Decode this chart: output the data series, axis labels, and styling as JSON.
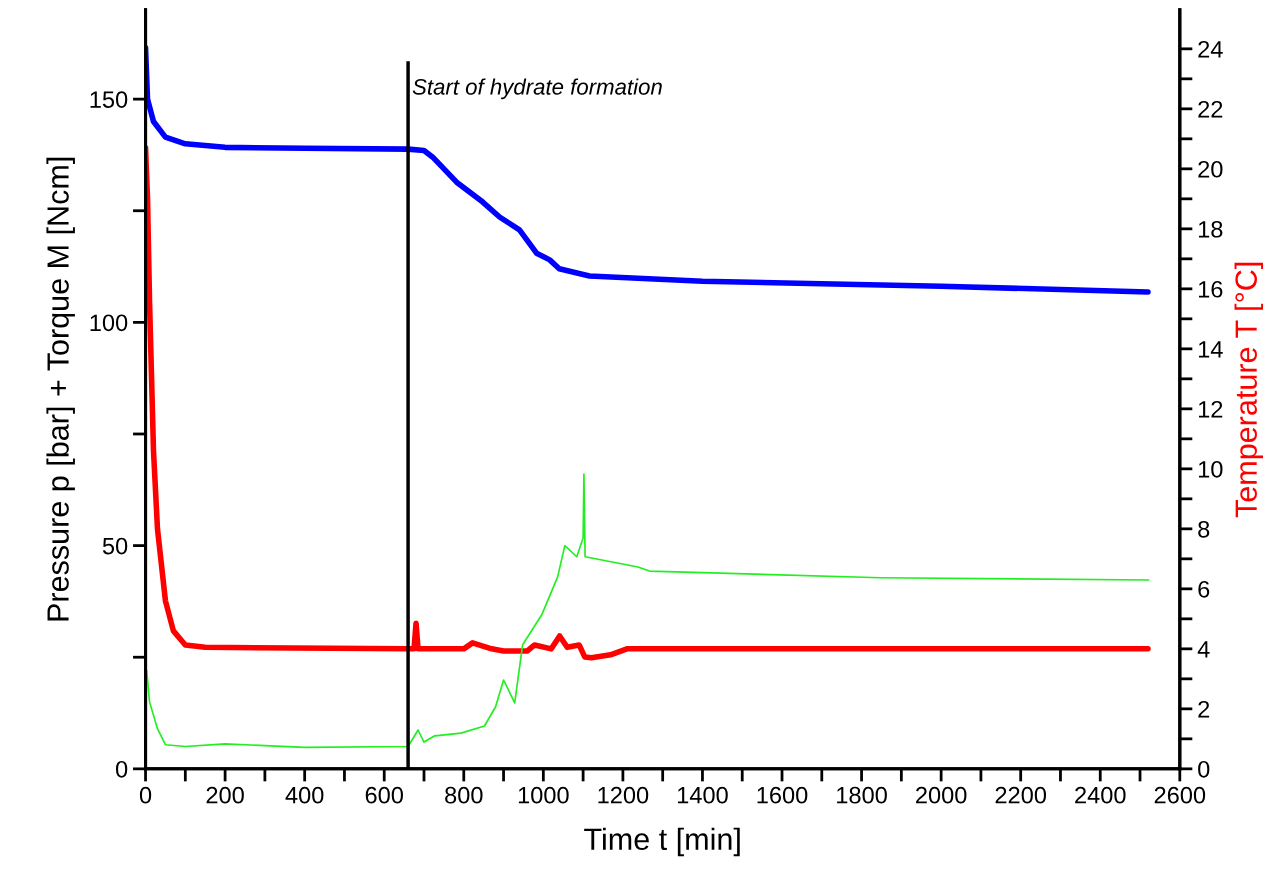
{
  "chart_data": {
    "type": "line",
    "xlabel": "Time t [min]",
    "ylabel": "Pressure p [bar] + Torque M [Ncm]",
    "y2label": "Temperature T [°C]",
    "xlim": [
      0,
      2600
    ],
    "ylim": [
      0,
      170
    ],
    "y2lim": [
      0,
      25.3
    ],
    "xticks": [
      0,
      {
        "value": 100,
        "label": null
      },
      200,
      {
        "value": 300,
        "label": null
      },
      400,
      {
        "value": 500,
        "label": null
      },
      600,
      {
        "value": 700,
        "label": null
      },
      800,
      {
        "value": 900,
        "label": null
      },
      1000,
      {
        "value": 1100,
        "label": null
      },
      1200,
      {
        "value": 1300,
        "label": null
      },
      1400,
      {
        "value": 1500,
        "label": null
      },
      1600,
      {
        "value": 1700,
        "label": null
      },
      1800,
      {
        "value": 1900,
        "label": null
      },
      2000,
      {
        "value": 2100,
        "label": null
      },
      2200,
      {
        "value": 2300,
        "label": null
      },
      2400,
      {
        "value": 2500,
        "label": null
      },
      2600
    ],
    "yticks": [
      0,
      {
        "value": 25,
        "label": null
      },
      50,
      {
        "value": 75,
        "label": null
      },
      100,
      {
        "value": 125,
        "label": null
      },
      150
    ],
    "y2ticks": [
      0,
      {
        "value": 1,
        "label": null
      },
      2,
      {
        "value": 3,
        "label": null
      },
      4,
      {
        "value": 5,
        "label": null
      },
      6,
      {
        "value": 7,
        "label": null
      },
      8,
      {
        "value": 9,
        "label": null
      },
      10,
      {
        "value": 11,
        "label": null
      },
      12,
      {
        "value": 13,
        "label": null
      },
      14,
      {
        "value": 15,
        "label": null
      },
      16,
      {
        "value": 17,
        "label": null
      },
      18,
      {
        "value": 19,
        "label": null
      },
      20,
      {
        "value": 21,
        "label": null
      },
      22,
      {
        "value": 23,
        "label": null
      },
      24
    ],
    "grid": false,
    "legend": false,
    "marker": "none",
    "line_style": "solid",
    "ref_lines": [
      {
        "axis": "x",
        "value": 660,
        "color": "#000000"
      }
    ],
    "annotations": [
      {
        "text": "Start of hydrate formation",
        "x": 670,
        "y": 150
      }
    ],
    "series": [
      {
        "color": "#0000ff",
        "x": [
          0,
          5,
          20,
          50,
          100,
          200,
          400,
          660,
          700,
          722,
          782,
          847,
          890,
          940,
          983,
          1016,
          1040,
          1116,
          1400,
          2000,
          2520
        ],
        "values": [
          161.5,
          150,
          145,
          141.5,
          140,
          139.2,
          139,
          138.8,
          138.5,
          137,
          131.4,
          127,
          123.6,
          120.7,
          115.5,
          114,
          112,
          110.4,
          109.2,
          108.1,
          106.8
        ]
      },
      {
        "color": "#22ee22",
        "x": [
          0,
          3,
          10,
          30,
          50,
          100,
          200,
          400,
          660,
          685,
          700,
          727,
          793,
          852,
          880,
          900,
          928,
          948,
          996,
          1036,
          1054,
          1084,
          1100,
          1102,
          1105,
          1238,
          1267,
          1848,
          2522
        ],
        "values": [
          15.7,
          22,
          15,
          9,
          5.4,
          5,
          5.6,
          4.8,
          5,
          8.7,
          6,
          7.4,
          8,
          9.6,
          13.9,
          19.9,
          14.8,
          27.8,
          34.5,
          43,
          50,
          47.5,
          51.7,
          66,
          47.5,
          45.2,
          44.3,
          42.8,
          42.3
        ]
      },
      {
        "color": "#ff0000",
        "axis": "y2",
        "x": [
          0,
          5,
          10,
          20,
          30,
          50,
          70,
          100,
          150,
          660,
          675,
          680,
          685,
          800,
          822,
          870,
          900,
          960,
          978,
          1020,
          1041,
          1060,
          1090,
          1104,
          1121,
          1169,
          1210,
          2520
        ],
        "values": [
          20.7,
          19,
          15.6,
          10.6,
          8,
          5.6,
          4.6,
          4.13,
          4.05,
          4.0,
          4.0,
          4.85,
          4.0,
          4.0,
          4.2,
          4.0,
          3.93,
          3.93,
          4.13,
          4.0,
          4.43,
          4.05,
          4.13,
          3.73,
          3.7,
          3.8,
          4.0,
          4.0
        ]
      }
    ]
  }
}
